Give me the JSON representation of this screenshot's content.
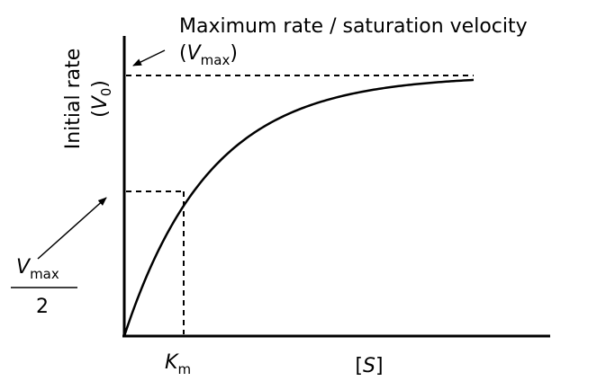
{
  "chart_data": {
    "type": "line",
    "title": "",
    "curve": "Michaelis-Menten saturation curve",
    "annotations": {
      "vmax_caption": "Maximum rate / saturation velocity",
      "vmax_open": "(",
      "vmax_symbol": "V",
      "vmax_subscript": "max",
      "vmax_close": ")",
      "half_vmax_symbol": "V",
      "half_vmax_subscript": "max",
      "half_vmax_denominator": "2"
    },
    "y_axis": {
      "label_line1": "Initial rate",
      "label_open": "(",
      "label_symbol": "V",
      "label_subscript": "0",
      "label_close": ")"
    },
    "x_axis": {
      "km_symbol": "K",
      "km_subscript": "m",
      "s_open": "[",
      "s_symbol": "S",
      "s_close": "]"
    },
    "grid": false,
    "legend": "none",
    "colors": {
      "stroke": "#000000",
      "background": "#ffffff"
    }
  }
}
